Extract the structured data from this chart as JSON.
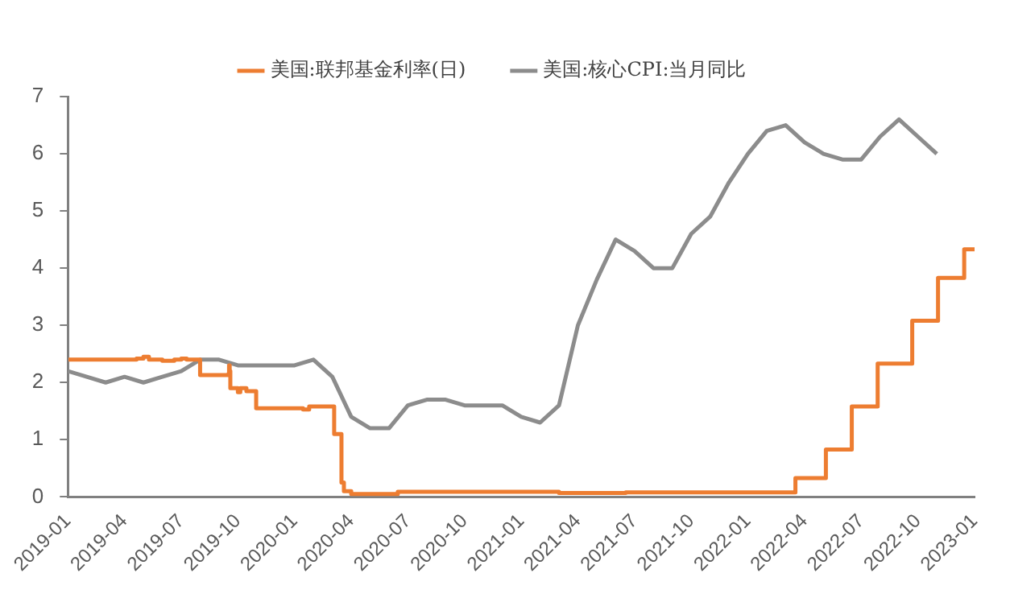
{
  "chart_data": {
    "type": "line",
    "legend": "top",
    "grid": false,
    "marker": "none",
    "line_style": "solid",
    "xlim": [
      "2019-01",
      "2023-01"
    ],
    "xticks": [
      "2019-01",
      "2019-04",
      "2019-07",
      "2019-10",
      "2020-01",
      "2020-04",
      "2020-07",
      "2020-10",
      "2021-01",
      "2021-04",
      "2021-07",
      "2021-10",
      "2022-01",
      "2022-04",
      "2022-07",
      "2022-10",
      "2023-01"
    ],
    "ylim": [
      0,
      7
    ],
    "yticks": [
      0,
      1,
      2,
      3,
      4,
      5,
      6,
      7
    ],
    "series": [
      {
        "name": "美国:联邦基金利率(日)",
        "type": "step",
        "color": "#ed7d31",
        "x": [
          "2019-01-02",
          "2019-04-20",
          "2019-05-01",
          "2019-05-10",
          "2019-06-01",
          "2019-06-20",
          "2019-07-01",
          "2019-07-10",
          "2019-08-01",
          "2019-09-16",
          "2019-09-17",
          "2019-09-18",
          "2019-09-19",
          "2019-10-01",
          "2019-10-05",
          "2019-10-15",
          "2019-10-31",
          "2020-01-15",
          "2020-01-25",
          "2020-03-04",
          "2020-03-16",
          "2020-03-20",
          "2020-04-01",
          "2020-06-15",
          "2021-03-01",
          "2021-06-17",
          "2022-03-17",
          "2022-05-05",
          "2022-06-16",
          "2022-07-28",
          "2022-09-22",
          "2022-11-03",
          "2022-12-15",
          "2023-01-01"
        ],
        "values": [
          2.4,
          2.42,
          2.45,
          2.4,
          2.38,
          2.4,
          2.42,
          2.4,
          2.13,
          2.15,
          2.3,
          2.2,
          1.9,
          1.83,
          1.9,
          1.85,
          1.55,
          1.53,
          1.58,
          1.1,
          0.25,
          0.1,
          0.05,
          0.09,
          0.07,
          0.08,
          0.33,
          0.83,
          1.58,
          2.33,
          3.08,
          3.83,
          4.33,
          4.33
        ]
      },
      {
        "name": "美国:核心CPI:当月同比",
        "type": "line",
        "color": "#8c8c8c",
        "x": [
          "2019-01",
          "2019-02",
          "2019-03",
          "2019-04",
          "2019-05",
          "2019-06",
          "2019-07",
          "2019-08",
          "2019-09",
          "2019-10",
          "2019-11",
          "2019-12",
          "2020-01",
          "2020-02",
          "2020-03",
          "2020-04",
          "2020-05",
          "2020-06",
          "2020-07",
          "2020-08",
          "2020-09",
          "2020-10",
          "2020-11",
          "2020-12",
          "2021-01",
          "2021-02",
          "2021-03",
          "2021-04",
          "2021-05",
          "2021-06",
          "2021-07",
          "2021-08",
          "2021-09",
          "2021-10",
          "2021-11",
          "2021-12",
          "2022-01",
          "2022-02",
          "2022-03",
          "2022-04",
          "2022-05",
          "2022-06",
          "2022-07",
          "2022-08",
          "2022-09",
          "2022-10",
          "2022-11"
        ],
        "values": [
          2.2,
          2.1,
          2.0,
          2.1,
          2.0,
          2.1,
          2.2,
          2.4,
          2.4,
          2.3,
          2.3,
          2.3,
          2.3,
          2.4,
          2.1,
          1.4,
          1.2,
          1.2,
          1.6,
          1.7,
          1.7,
          1.6,
          1.6,
          1.6,
          1.4,
          1.3,
          1.6,
          3.0,
          3.8,
          4.5,
          4.3,
          4.0,
          4.0,
          4.6,
          4.9,
          5.5,
          6.0,
          6.4,
          6.5,
          6.2,
          6.0,
          5.9,
          5.9,
          6.3,
          6.6,
          6.3,
          6.0
        ]
      }
    ]
  }
}
